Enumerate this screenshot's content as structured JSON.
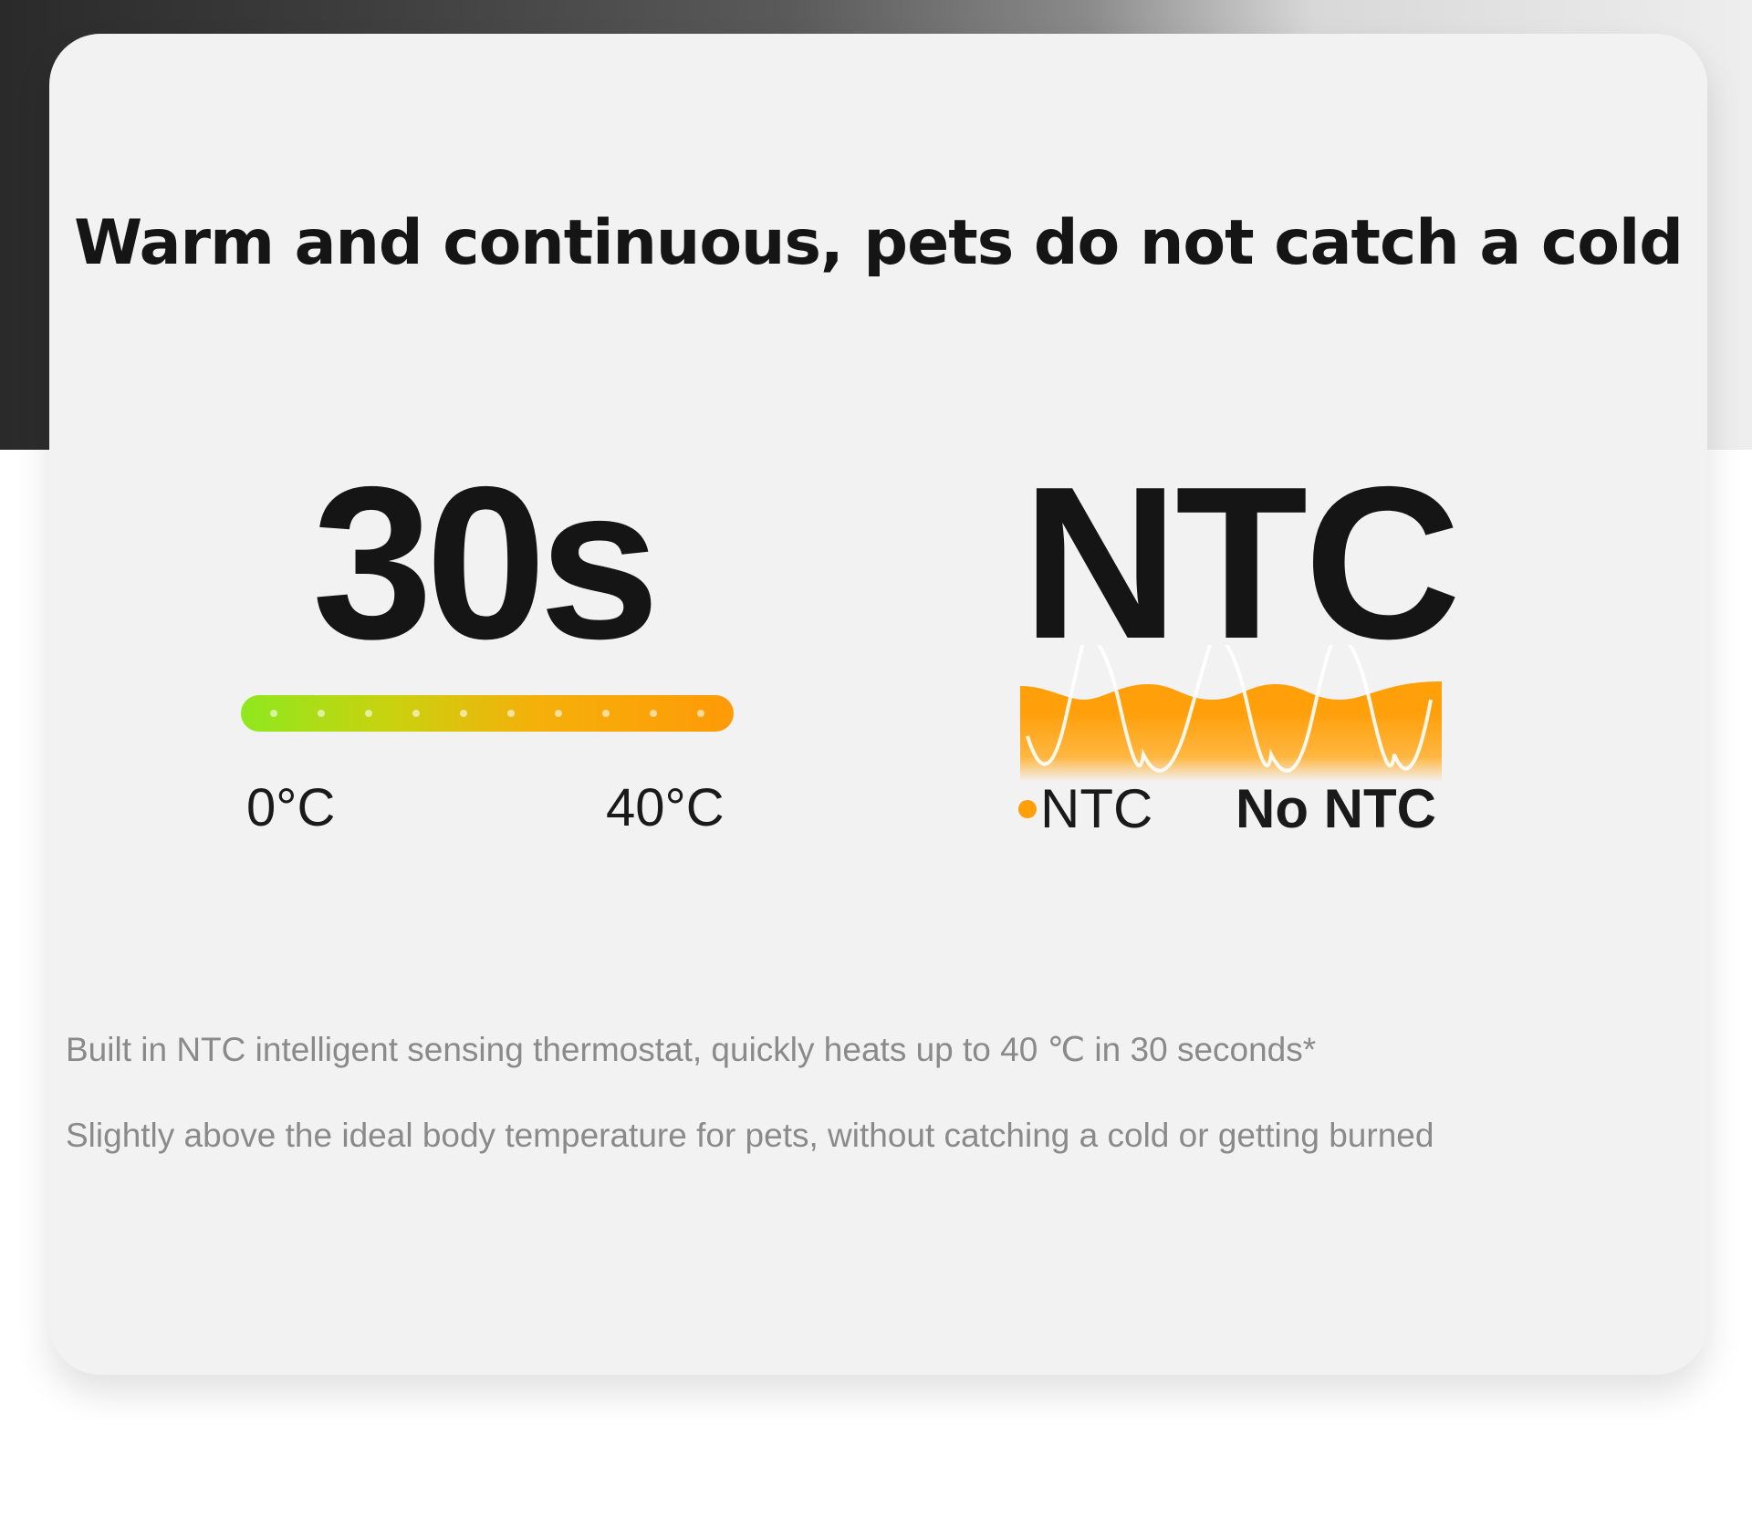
{
  "title": "Warm and continuous, pets do not catch a cold",
  "heat_time": {
    "value": "30s",
    "scale_min_label": "0°C",
    "scale_max_label": "40°C",
    "bar_colors": [
      "#8fe81e",
      "#ff9a08"
    ]
  },
  "sensor": {
    "value": "NTC",
    "legend_ntc": "NTC",
    "legend_no_ntc": "No NTC",
    "ntc_color": "#ff9f0a"
  },
  "description": [
    "Built in NTC intelligent sensing thermostat, quickly heats up to 40 ℃ in 30 seconds*",
    "Slightly above the ideal body temperature for pets, without catching a cold or getting burned"
  ]
}
